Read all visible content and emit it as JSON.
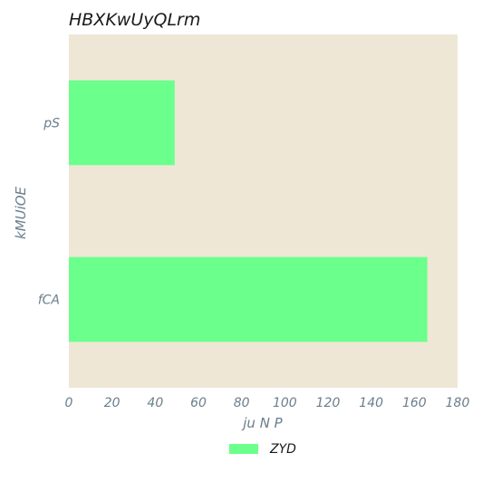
{
  "chart_data": {
    "type": "bar",
    "orientation": "horizontal",
    "title": "HBXKwUyQLrm",
    "xlabel": "ju N   P",
    "ylabel": "kMUiOE",
    "categories": [
      "pS",
      "fCA"
    ],
    "series": [
      {
        "name": "ZYD",
        "values": [
          49,
          166
        ],
        "color": "#6bff8c"
      }
    ],
    "xlim": [
      0,
      180
    ],
    "xticks": [
      0,
      20,
      40,
      60,
      80,
      100,
      120,
      140,
      160,
      180
    ],
    "plot_background": "#eee7d6",
    "grid": false,
    "legend": "bottom-center"
  }
}
